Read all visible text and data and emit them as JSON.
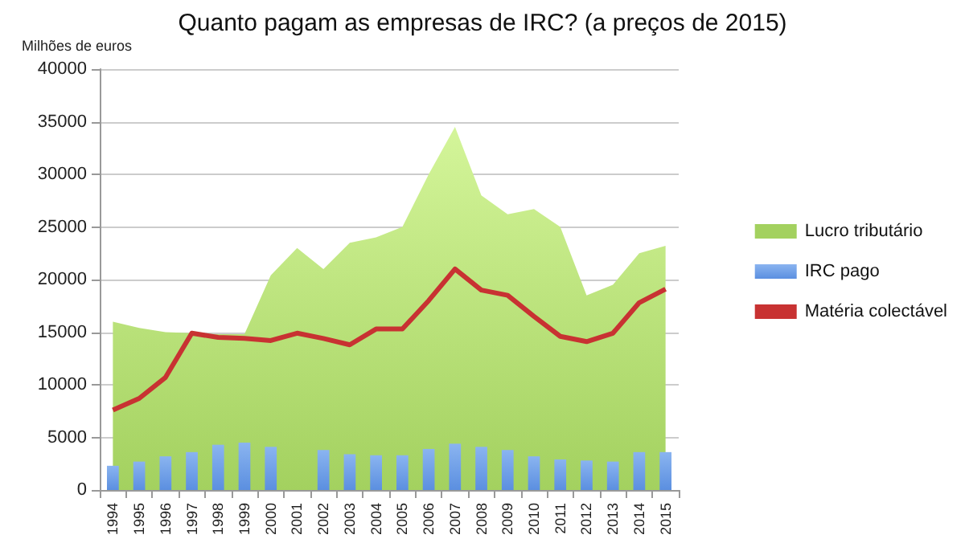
{
  "chart_data": {
    "type": "bar",
    "title": "Quanto pagam as empresas de IRC? (a preços de 2015)",
    "ylabel": "Milhões de euros",
    "categories": [
      "1994",
      "1995",
      "1996",
      "1997",
      "1998",
      "1999",
      "2000",
      "2001",
      "2002",
      "2003",
      "2004",
      "2005",
      "2006",
      "2007",
      "2008",
      "2009",
      "2010",
      "2011",
      "2012",
      "2013",
      "2014",
      "2015"
    ],
    "series": [
      {
        "name": "Lucro tributário",
        "type": "area",
        "color": "#a3d15f",
        "values": [
          16000,
          15400,
          15000,
          14900,
          14800,
          14800,
          20400,
          23000,
          21000,
          23500,
          24000,
          25000,
          30000,
          34500,
          28000,
          26200,
          26700,
          25000,
          18500,
          19500,
          22500,
          23200
        ]
      },
      {
        "name": "IRC pago",
        "color": "#5b8fe0",
        "values": [
          2300,
          2700,
          3200,
          3600,
          4300,
          4500,
          4100,
          null,
          3800,
          3400,
          3300,
          3300,
          3900,
          4400,
          4100,
          3800,
          3200,
          2900,
          2800,
          2700,
          3600,
          3600
        ]
      },
      {
        "name": "Matéria colectável",
        "type": "line",
        "color": "#c83232",
        "marker": "none",
        "values": [
          7600,
          8700,
          10700,
          14900,
          14500,
          14400,
          14200,
          14900,
          14400,
          13800,
          15300,
          15300,
          18000,
          21000,
          19000,
          18500,
          16500,
          14600,
          14100,
          14900,
          17800,
          19100
        ]
      }
    ],
    "ylim": [
      0,
      40000
    ],
    "yticks": [
      0,
      5000,
      10000,
      15000,
      20000,
      25000,
      30000,
      35000,
      40000
    ],
    "grid": "y",
    "legend": "right"
  }
}
